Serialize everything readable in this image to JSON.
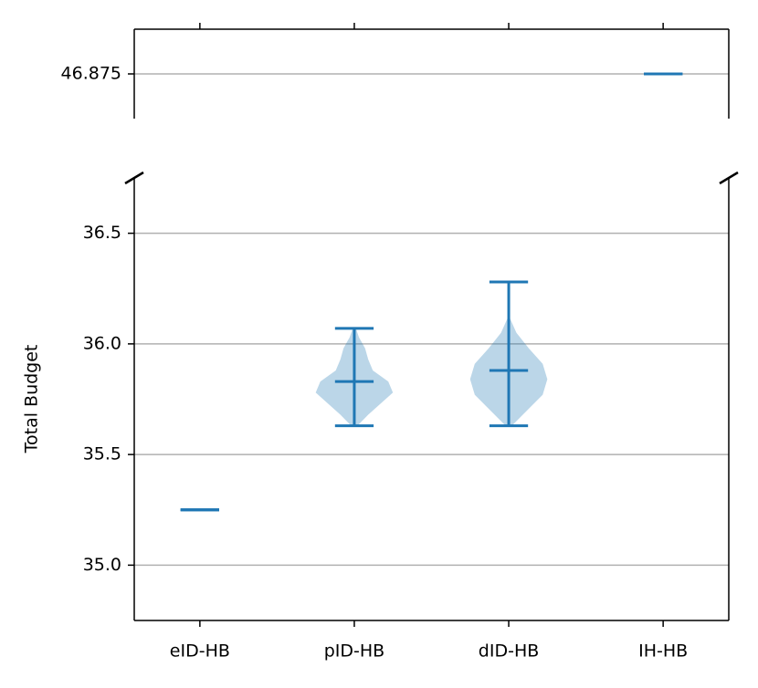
{
  "chart_data": {
    "type": "violin",
    "ylabel": "Total Budget",
    "categories": [
      "eID-HB",
      "pID-HB",
      "dID-HB",
      "IH-HB"
    ],
    "mins": [
      35.25,
      35.63,
      35.63,
      46.875
    ],
    "maxes": [
      35.25,
      36.07,
      36.28,
      46.875
    ],
    "means": [
      35.25,
      35.83,
      35.88,
      46.875
    ],
    "kde": [
      null,
      {
        "y": [
          35.63,
          35.68,
          35.73,
          35.78,
          35.83,
          35.88,
          35.93,
          35.98,
          36.03,
          36.07
        ],
        "width": [
          0.02,
          0.09,
          0.17,
          0.25,
          0.22,
          0.12,
          0.09,
          0.07,
          0.03,
          0.01
        ]
      },
      {
        "y": [
          35.63,
          35.7,
          35.77,
          35.84,
          35.91,
          35.98,
          36.05,
          36.12
        ],
        "width": [
          0.02,
          0.12,
          0.22,
          0.25,
          0.22,
          0.13,
          0.05,
          0.005
        ]
      },
      null
    ],
    "color": "#1f77b4",
    "grid": true,
    "panels": [
      {
        "ylim": [
          46.8,
          46.95
        ],
        "yticks": [
          46.875
        ]
      },
      {
        "ylim": [
          34.75,
          36.75
        ],
        "yticks": [
          {
            "value": 35,
            "label": "35.0"
          },
          35.5,
          {
            "value": 36,
            "label": "36.0"
          },
          36.5
        ]
      }
    ]
  }
}
